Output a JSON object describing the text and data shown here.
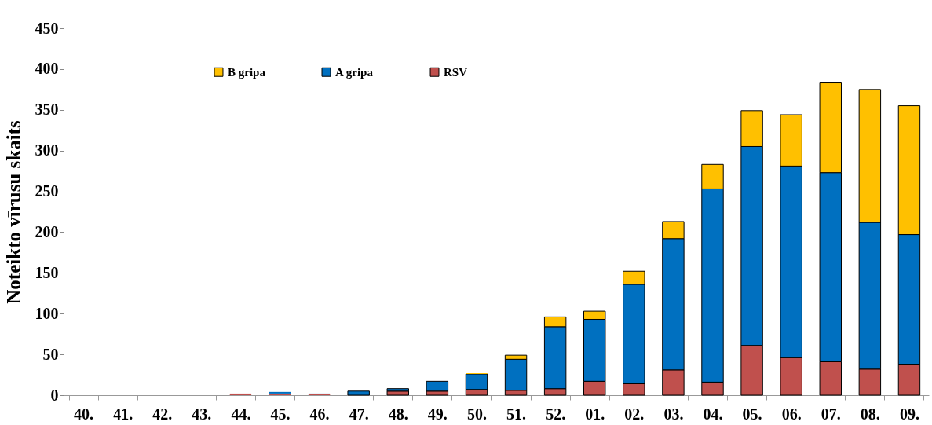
{
  "chart_data": {
    "type": "bar",
    "stacked": true,
    "ylabel": "Noteikto vīrusu skaits",
    "categories": [
      "40.",
      "41.",
      "42.",
      "43.",
      "44.",
      "45.",
      "46.",
      "47.",
      "48.",
      "49.",
      "50.",
      "51.",
      "52.",
      "01.",
      "02.",
      "03.",
      "04.",
      "05.",
      "06.",
      "07.",
      "08.",
      "09."
    ],
    "series": [
      {
        "name": "RSV",
        "color": "#c0504d",
        "values": [
          0,
          0,
          0,
          0,
          2,
          2,
          1,
          0,
          5,
          5,
          7,
          6,
          8,
          17,
          14,
          31,
          16,
          61,
          46,
          41,
          32,
          38
        ]
      },
      {
        "name": "A gripa",
        "color": "#0070c0",
        "values": [
          0,
          0,
          0,
          0,
          0,
          2,
          1,
          5,
          3,
          12,
          19,
          38,
          76,
          76,
          122,
          161,
          237,
          244,
          235,
          232,
          180,
          159
        ]
      },
      {
        "name": "B gripa",
        "color": "#ffc000",
        "values": [
          0,
          0,
          0,
          0,
          0,
          0,
          0,
          0,
          0,
          0,
          1,
          5,
          12,
          10,
          16,
          21,
          30,
          44,
          63,
          110,
          163,
          158
        ]
      }
    ],
    "ylim": [
      0,
      450
    ],
    "yticks": [
      0,
      50,
      100,
      150,
      200,
      250,
      300,
      350,
      400,
      450
    ],
    "grid": false,
    "legend": "top"
  }
}
